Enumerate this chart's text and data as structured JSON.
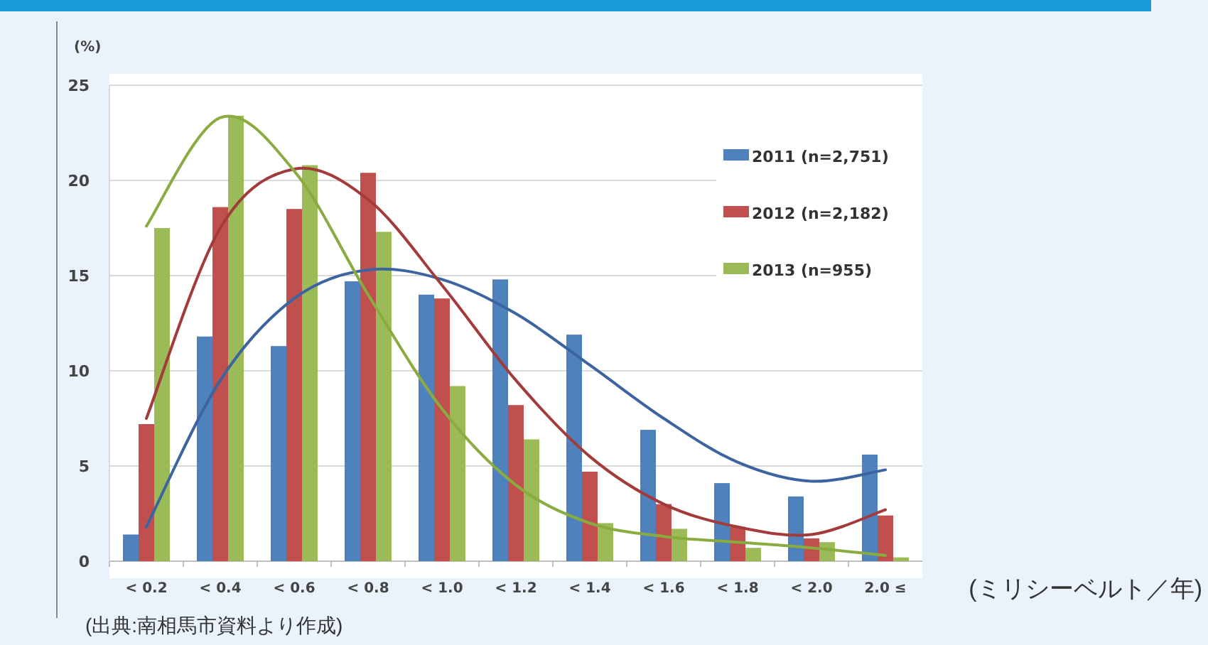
{
  "chart_data": {
    "type": "bar",
    "categories": [
      "< 0.2",
      "< 0.4",
      "< 0.6",
      "< 0.8",
      "< 1.0",
      "< 1.2",
      "< 1.4",
      "< 1.6",
      "< 1.8",
      "< 2.0",
      "2.0 ≤"
    ],
    "series": [
      {
        "name": "2011 (n=2,751)",
        "color": "#4f81bd",
        "values": [
          1.4,
          11.8,
          11.3,
          14.7,
          14.0,
          14.8,
          11.9,
          6.9,
          4.1,
          3.4,
          5.6
        ]
      },
      {
        "name": "2012 (n=2,182)",
        "color": "#c0504d",
        "values": [
          7.2,
          18.6,
          18.5,
          20.4,
          13.8,
          8.2,
          4.7,
          3.0,
          1.8,
          1.2,
          2.4
        ]
      },
      {
        "name": "2013 (n=955)",
        "color": "#9bbb59",
        "values": [
          17.5,
          23.4,
          20.8,
          17.3,
          9.2,
          6.4,
          2.0,
          1.7,
          0.7,
          1.0,
          0.2
        ]
      },
      {
        "type": "line",
        "color": "#3c64a0",
        "values": [
          1.8,
          9.5,
          13.8,
          15.3,
          14.8,
          13.0,
          10.3,
          7.5,
          5.2,
          4.2,
          4.8
        ]
      },
      {
        "type": "line",
        "color": "#a23b3a",
        "values": [
          7.5,
          17.5,
          20.6,
          19.0,
          14.5,
          9.5,
          5.5,
          3.0,
          1.8,
          1.4,
          2.7
        ]
      },
      {
        "type": "line",
        "color": "#8aab3f",
        "values": [
          17.6,
          23.3,
          20.5,
          14.0,
          8.0,
          4.0,
          2.0,
          1.3,
          1.0,
          0.7,
          0.3
        ]
      }
    ],
    "ylim": [
      0,
      25
    ],
    "yticks": [
      0,
      5,
      10,
      15,
      20,
      25
    ],
    "ylabel": "(%)",
    "xlabel": "(ミリシーベルト／年)",
    "annotations": [
      "(出典:南相馬市資料より作成)"
    ],
    "grid": "y",
    "legend": "top right"
  }
}
